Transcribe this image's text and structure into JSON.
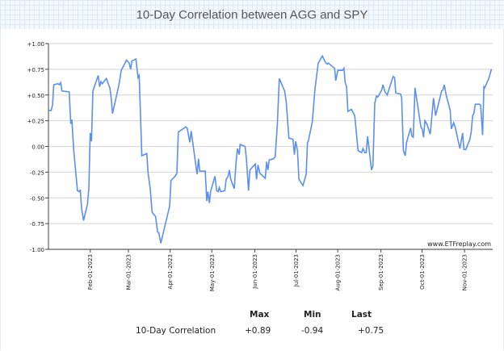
{
  "chart_data": {
    "type": "line",
    "title": "10-Day Correlation between AGG and SPY",
    "xlabel": "",
    "ylabel": "",
    "ylim": [
      -1,
      1
    ],
    "xlim": [
      1.6,
      318.4
    ],
    "yticks": [
      "+1.00",
      "+0.75",
      "+0.50",
      "+0.25",
      "0.00",
      "-0.25",
      "-0.50",
      "-0.75",
      "-1.00"
    ],
    "ytick_values": [
      1,
      0.75,
      0.5,
      0.25,
      0,
      -0.25,
      -0.5,
      -0.75,
      -1
    ],
    "xticks": [
      {
        "label": "Feb-01-2023",
        "day": 31.4
      },
      {
        "label": "Mar-01-2023",
        "day": 58.6
      },
      {
        "label": "Apr-01-2023",
        "day": 88.4
      },
      {
        "label": "May-01-2023",
        "day": 118.1
      },
      {
        "label": "Jun-01-2023",
        "day": 148.8
      },
      {
        "label": "Jul-01-2023",
        "day": 178.2
      },
      {
        "label": "Aug-01-2023",
        "day": 207.9
      },
      {
        "label": "Sep-01-2023",
        "day": 238.7
      },
      {
        "label": "Oct-01-2023",
        "day": 268.0
      },
      {
        "label": "Nov-01-2023",
        "day": 298.3
      }
    ],
    "grid": true,
    "series": [
      {
        "name": "10-Day Correlation",
        "color": "#5b8ff0",
        "x": [
          2.0,
          3.5,
          4.5,
          5.4,
          8.3,
          9.3,
          10.3,
          11.2,
          16.4,
          17.5,
          18.3,
          19.5,
          22.3,
          23.7,
          24.3,
          25.2,
          26.6,
          29.4,
          30.4,
          31.4,
          32.3,
          33.3,
          37.1,
          38.1,
          39.1,
          40.0,
          42.9,
          45.4,
          46.2,
          47.3,
          51.9,
          53.5,
          57.3,
          59.2,
          60.2,
          61.1,
          64.0,
          65.5,
          66.3,
          68.2,
          71.7,
          72.7,
          74.2,
          75.5,
          78.0,
          79.4,
          80.3,
          81.7,
          86.1,
          88.0,
          89.0,
          91.9,
          93.2,
          94.2,
          99.5,
          100.5,
          102.4,
          103.4,
          107.6,
          108.6,
          109.5,
          113.4,
          114.5,
          115.3,
          116.4,
          117.2,
          120.3,
          121.6,
          122.6,
          123.5,
          124.5,
          127.4,
          128.3,
          129.7,
          130.6,
          131.6,
          134.1,
          135.4,
          136.4,
          137.6,
          138.3,
          141.8,
          142.7,
          144.3,
          145.2,
          149.1,
          150.0,
          151.0,
          152.4,
          156.2,
          157.2,
          158.1,
          159.1,
          162.0,
          163.3,
          164.8,
          166.2,
          170.0,
          171.2,
          173.1,
          176.0,
          177.0,
          177.9,
          179.2,
          180.2,
          183.1,
          185.4,
          186.3,
          186.9,
          189.8,
          191.7,
          194.0,
          196.9,
          199.0,
          200.4,
          201.3,
          204.6,
          205.7,
          206.5,
          208.0,
          211.3,
          212.3,
          213.2,
          214.2,
          215.1,
          217.6,
          220.0,
          222.4,
          224.9,
          225.9,
          227.2,
          228.2,
          229.2,
          232.0,
          233.0,
          234.3,
          235.5,
          236.5,
          239.3,
          240.1,
          241.6,
          243.2,
          247.4,
          248.4,
          249.3,
          252.8,
          253.5,
          254.7,
          256.0,
          257.0,
          259.9,
          260.8,
          261.8,
          263.0,
          267.2,
          268.1,
          269.1,
          270.1,
          271.4,
          273.9,
          276.2,
          277.7,
          282.0,
          282.9,
          283.9,
          285.2,
          288.1,
          288.9,
          290.6,
          291.6,
          295.0,
          297.0,
          297.9,
          299.3,
          302.1,
          303.1,
          304.1,
          305.0,
          306.0,
          308.9,
          309.8,
          311.2,
          312.1,
          312.7,
          315.6,
          317.5
        ],
        "y": [
          0.35,
          0.35,
          0.4,
          0.6,
          0.61,
          0.6,
          0.62,
          0.54,
          0.53,
          0.22,
          0.26,
          -0.02,
          -0.43,
          -0.44,
          -0.42,
          -0.6,
          -0.72,
          -0.56,
          -0.41,
          0.13,
          0.05,
          0.54,
          0.69,
          0.58,
          0.63,
          0.61,
          0.66,
          0.57,
          0.49,
          0.32,
          0.6,
          0.74,
          0.84,
          0.81,
          0.75,
          0.83,
          0.85,
          0.67,
          0.69,
          -0.09,
          -0.07,
          -0.26,
          -0.41,
          -0.64,
          -0.68,
          -0.83,
          -0.84,
          -0.94,
          -0.69,
          -0.58,
          -0.33,
          -0.29,
          -0.26,
          0.14,
          0.19,
          0.18,
          0.04,
          0.15,
          -0.27,
          -0.12,
          -0.24,
          -0.24,
          -0.53,
          -0.44,
          -0.55,
          -0.44,
          -0.29,
          -0.43,
          -0.44,
          -0.4,
          -0.44,
          -0.43,
          -0.32,
          -0.29,
          -0.23,
          -0.32,
          -0.41,
          -0.15,
          -0.02,
          -0.08,
          0.02,
          0.0,
          -0.11,
          -0.43,
          -0.23,
          -0.17,
          -0.32,
          -0.18,
          -0.26,
          -0.31,
          -0.15,
          -0.23,
          -0.13,
          -0.12,
          -0.1,
          0.2,
          0.66,
          0.54,
          0.43,
          0.08,
          0.07,
          -0.08,
          0.05,
          -0.04,
          -0.32,
          -0.38,
          -0.27,
          0.04,
          0.05,
          0.24,
          0.56,
          0.81,
          0.88,
          0.82,
          0.8,
          0.81,
          0.77,
          0.76,
          0.64,
          0.74,
          0.74,
          0.76,
          0.62,
          0.58,
          0.34,
          0.36,
          0.3,
          -0.04,
          -0.06,
          -0.02,
          -0.06,
          -0.06,
          0.1,
          -0.23,
          -0.19,
          0.42,
          0.49,
          0.48,
          0.55,
          0.6,
          0.53,
          0.5,
          0.68,
          0.67,
          0.52,
          0.51,
          0.47,
          -0.04,
          -0.09,
          0.04,
          0.18,
          0.1,
          0.09,
          0.57,
          0.19,
          0.17,
          0.09,
          0.25,
          0.22,
          0.12,
          0.47,
          0.3,
          0.54,
          0.55,
          0.6,
          0.5,
          0.35,
          0.17,
          0.23,
          0.19,
          -0.02,
          0.13,
          -0.03,
          -0.03,
          0.07,
          0.14,
          0.3,
          0.32,
          0.41,
          0.41,
          0.4,
          0.11,
          0.58,
          0.57,
          0.66,
          0.75
        ]
      }
    ],
    "annotations": [
      "www.ETFreplay.com"
    ]
  },
  "stats": {
    "headers": [
      "Max",
      "Min",
      "Last"
    ],
    "row_label": "10-Day Correlation",
    "values": [
      "+0.89",
      "-0.94",
      "+0.75"
    ]
  }
}
